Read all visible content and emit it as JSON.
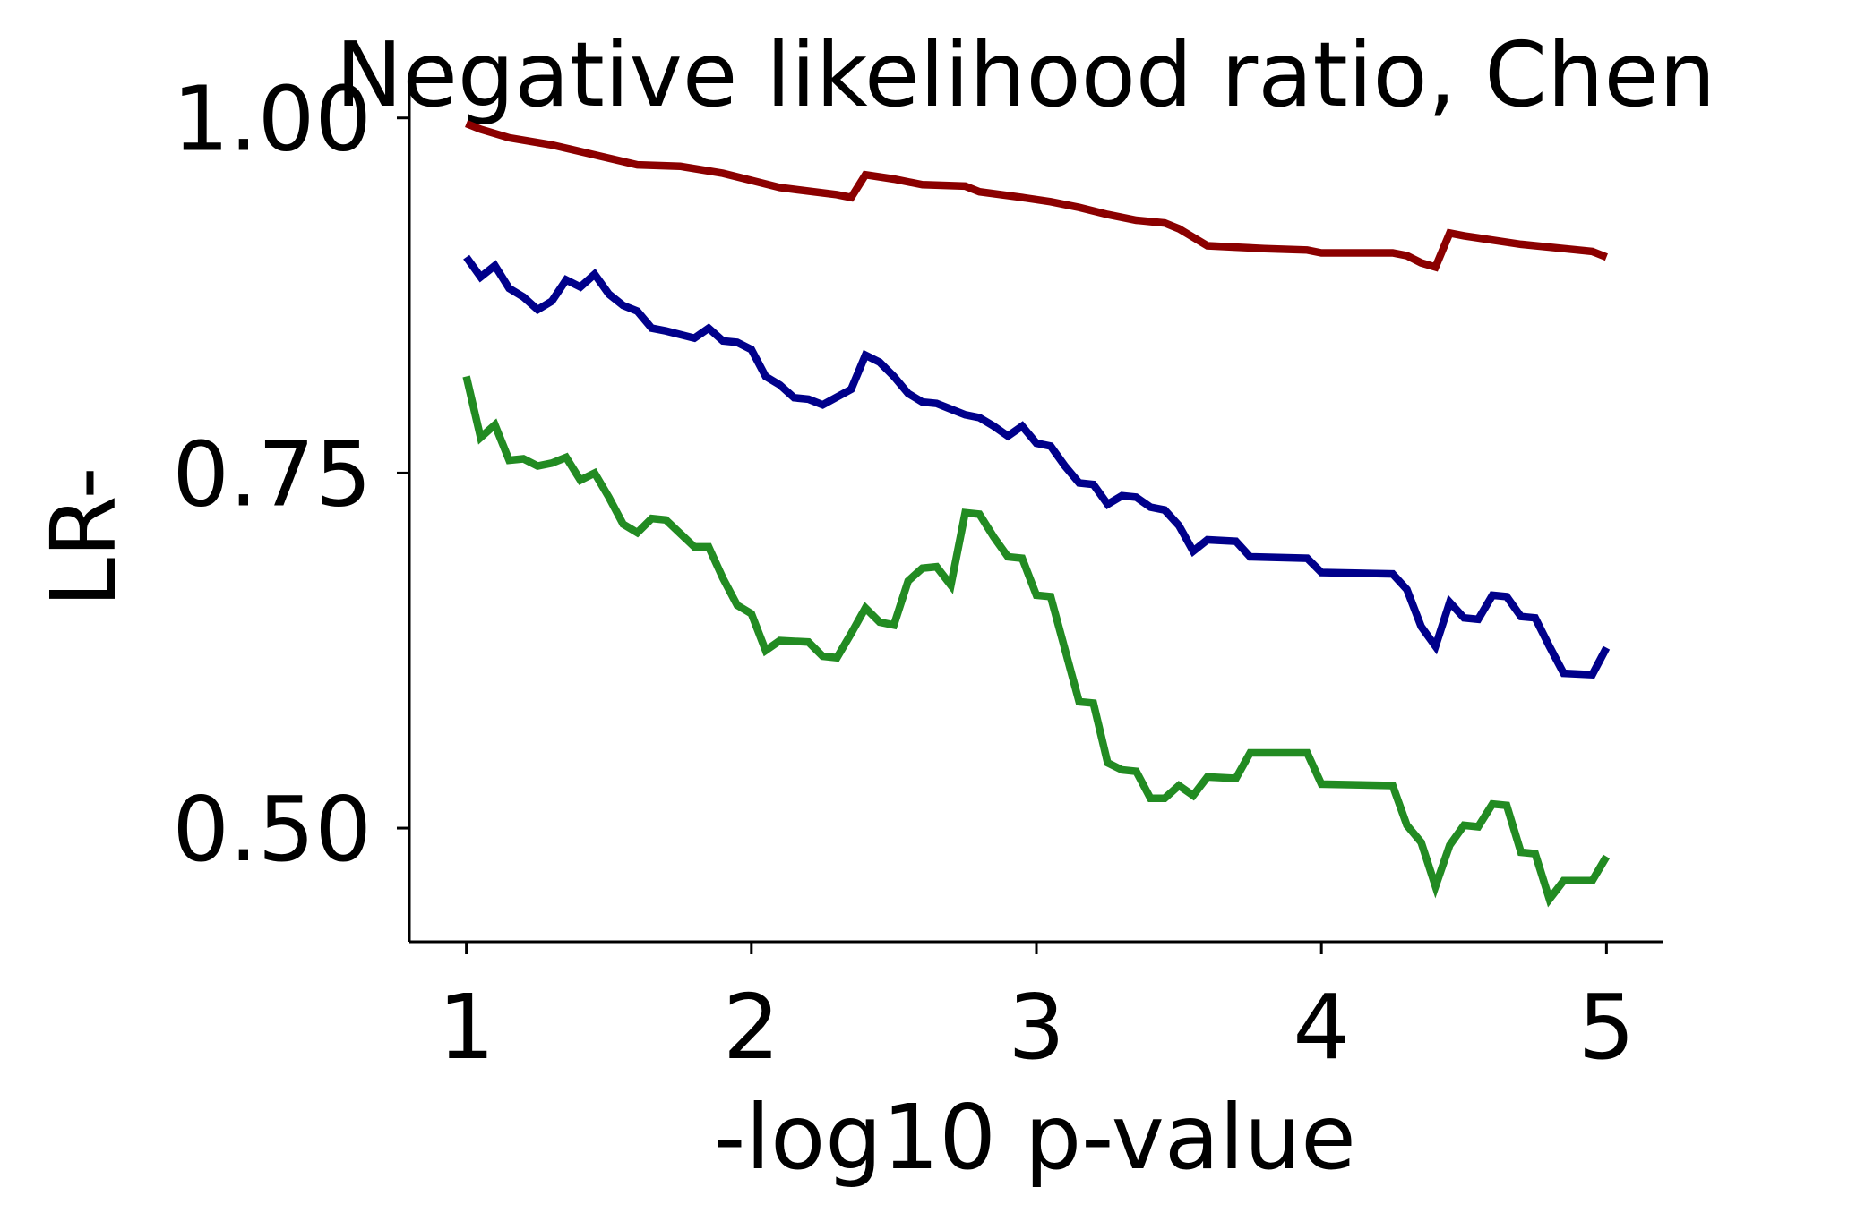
{
  "chart_data": {
    "type": "line",
    "title": "Negative likelihood ratio, Chen",
    "xlabel": "-log10 p-value",
    "ylabel": "LR-",
    "xlim": [
      0.8,
      5.2
    ],
    "ylim": [
      0.42,
      1.02
    ],
    "xticks": [
      1,
      2,
      3,
      4,
      5
    ],
    "xtick_labels": [
      "1",
      "2",
      "3",
      "4",
      "5"
    ],
    "yticks": [
      0.5,
      0.75,
      1.0
    ],
    "ytick_labels": [
      "0.50",
      "0.75",
      "1.00"
    ],
    "grid": false,
    "legend": "none",
    "series": [
      {
        "color": "#8b0000",
        "points": [
          [
            1.0,
            0.996
          ],
          [
            1.05,
            0.992
          ],
          [
            1.15,
            0.986
          ],
          [
            1.3,
            0.981
          ],
          [
            1.45,
            0.974
          ],
          [
            1.6,
            0.967
          ],
          [
            1.75,
            0.966
          ],
          [
            1.9,
            0.961
          ],
          [
            2.0,
            0.956
          ],
          [
            2.1,
            0.951
          ],
          [
            2.3,
            0.946
          ],
          [
            2.35,
            0.944
          ],
          [
            2.4,
            0.96
          ],
          [
            2.5,
            0.957
          ],
          [
            2.6,
            0.953
          ],
          [
            2.75,
            0.952
          ],
          [
            2.8,
            0.948
          ],
          [
            2.95,
            0.944
          ],
          [
            3.05,
            0.941
          ],
          [
            3.15,
            0.937
          ],
          [
            3.25,
            0.932
          ],
          [
            3.35,
            0.928
          ],
          [
            3.45,
            0.926
          ],
          [
            3.5,
            0.922
          ],
          [
            3.55,
            0.916
          ],
          [
            3.6,
            0.91
          ],
          [
            3.7,
            0.909
          ],
          [
            3.8,
            0.908
          ],
          [
            3.95,
            0.907
          ],
          [
            4.0,
            0.905
          ],
          [
            4.25,
            0.905
          ],
          [
            4.3,
            0.903
          ],
          [
            4.35,
            0.898
          ],
          [
            4.4,
            0.895
          ],
          [
            4.45,
            0.919
          ],
          [
            4.5,
            0.917
          ],
          [
            4.6,
            0.914
          ],
          [
            4.7,
            0.911
          ],
          [
            4.85,
            0.908
          ],
          [
            4.95,
            0.906
          ],
          [
            5.0,
            0.902
          ]
        ]
      },
      {
        "color": "#00008b",
        "points": [
          [
            1.0,
            0.902
          ],
          [
            1.05,
            0.888
          ],
          [
            1.1,
            0.896
          ],
          [
            1.15,
            0.88
          ],
          [
            1.2,
            0.874
          ],
          [
            1.25,
            0.865
          ],
          [
            1.3,
            0.871
          ],
          [
            1.35,
            0.886
          ],
          [
            1.4,
            0.881
          ],
          [
            1.45,
            0.89
          ],
          [
            1.5,
            0.876
          ],
          [
            1.55,
            0.868
          ],
          [
            1.6,
            0.864
          ],
          [
            1.65,
            0.852
          ],
          [
            1.7,
            0.85
          ],
          [
            1.8,
            0.845
          ],
          [
            1.85,
            0.852
          ],
          [
            1.9,
            0.843
          ],
          [
            1.95,
            0.842
          ],
          [
            2.0,
            0.837
          ],
          [
            2.05,
            0.818
          ],
          [
            2.1,
            0.812
          ],
          [
            2.15,
            0.803
          ],
          [
            2.2,
            0.802
          ],
          [
            2.25,
            0.798
          ],
          [
            2.35,
            0.809
          ],
          [
            2.4,
            0.833
          ],
          [
            2.45,
            0.828
          ],
          [
            2.5,
            0.818
          ],
          [
            2.55,
            0.806
          ],
          [
            2.6,
            0.8
          ],
          [
            2.65,
            0.799
          ],
          [
            2.7,
            0.795
          ],
          [
            2.75,
            0.791
          ],
          [
            2.8,
            0.789
          ],
          [
            2.85,
            0.783
          ],
          [
            2.9,
            0.776
          ],
          [
            2.95,
            0.783
          ],
          [
            3.0,
            0.771
          ],
          [
            3.05,
            0.769
          ],
          [
            3.1,
            0.755
          ],
          [
            3.15,
            0.743
          ],
          [
            3.2,
            0.742
          ],
          [
            3.25,
            0.728
          ],
          [
            3.3,
            0.734
          ],
          [
            3.35,
            0.733
          ],
          [
            3.4,
            0.726
          ],
          [
            3.45,
            0.724
          ],
          [
            3.5,
            0.713
          ],
          [
            3.55,
            0.695
          ],
          [
            3.6,
            0.703
          ],
          [
            3.7,
            0.702
          ],
          [
            3.75,
            0.691
          ],
          [
            3.95,
            0.69
          ],
          [
            4.0,
            0.68
          ],
          [
            4.25,
            0.679
          ],
          [
            4.3,
            0.668
          ],
          [
            4.35,
            0.642
          ],
          [
            4.4,
            0.628
          ],
          [
            4.45,
            0.659
          ],
          [
            4.5,
            0.648
          ],
          [
            4.55,
            0.647
          ],
          [
            4.6,
            0.664
          ],
          [
            4.65,
            0.663
          ],
          [
            4.7,
            0.649
          ],
          [
            4.75,
            0.648
          ],
          [
            4.8,
            0.628
          ],
          [
            4.85,
            0.609
          ],
          [
            4.95,
            0.608
          ],
          [
            5.0,
            0.627
          ]
        ]
      },
      {
        "color": "#228b22",
        "points": [
          [
            1.0,
            0.818
          ],
          [
            1.05,
            0.775
          ],
          [
            1.1,
            0.784
          ],
          [
            1.15,
            0.759
          ],
          [
            1.2,
            0.76
          ],
          [
            1.25,
            0.755
          ],
          [
            1.3,
            0.757
          ],
          [
            1.35,
            0.761
          ],
          [
            1.4,
            0.745
          ],
          [
            1.45,
            0.75
          ],
          [
            1.5,
            0.733
          ],
          [
            1.55,
            0.714
          ],
          [
            1.6,
            0.708
          ],
          [
            1.65,
            0.718
          ],
          [
            1.7,
            0.717
          ],
          [
            1.8,
            0.698
          ],
          [
            1.85,
            0.698
          ],
          [
            1.9,
            0.676
          ],
          [
            1.95,
            0.657
          ],
          [
            2.0,
            0.651
          ],
          [
            2.05,
            0.625
          ],
          [
            2.1,
            0.632
          ],
          [
            2.2,
            0.631
          ],
          [
            2.25,
            0.621
          ],
          [
            2.3,
            0.62
          ],
          [
            2.35,
            0.637
          ],
          [
            2.4,
            0.655
          ],
          [
            2.45,
            0.645
          ],
          [
            2.5,
            0.643
          ],
          [
            2.55,
            0.674
          ],
          [
            2.6,
            0.683
          ],
          [
            2.65,
            0.684
          ],
          [
            2.7,
            0.671
          ],
          [
            2.75,
            0.722
          ],
          [
            2.8,
            0.721
          ],
          [
            2.85,
            0.705
          ],
          [
            2.9,
            0.691
          ],
          [
            2.95,
            0.69
          ],
          [
            3.0,
            0.664
          ],
          [
            3.05,
            0.663
          ],
          [
            3.1,
            0.626
          ],
          [
            3.15,
            0.589
          ],
          [
            3.2,
            0.588
          ],
          [
            3.25,
            0.546
          ],
          [
            3.3,
            0.541
          ],
          [
            3.35,
            0.54
          ],
          [
            3.4,
            0.521
          ],
          [
            3.45,
            0.521
          ],
          [
            3.5,
            0.53
          ],
          [
            3.55,
            0.523
          ],
          [
            3.6,
            0.536
          ],
          [
            3.7,
            0.535
          ],
          [
            3.75,
            0.553
          ],
          [
            3.95,
            0.553
          ],
          [
            4.0,
            0.531
          ],
          [
            4.25,
            0.53
          ],
          [
            4.3,
            0.502
          ],
          [
            4.35,
            0.49
          ],
          [
            4.4,
            0.459
          ],
          [
            4.45,
            0.488
          ],
          [
            4.5,
            0.502
          ],
          [
            4.55,
            0.501
          ],
          [
            4.6,
            0.517
          ],
          [
            4.65,
            0.516
          ],
          [
            4.7,
            0.483
          ],
          [
            4.75,
            0.482
          ],
          [
            4.8,
            0.45
          ],
          [
            4.85,
            0.463
          ],
          [
            4.95,
            0.463
          ],
          [
            5.0,
            0.48
          ]
        ]
      }
    ]
  }
}
